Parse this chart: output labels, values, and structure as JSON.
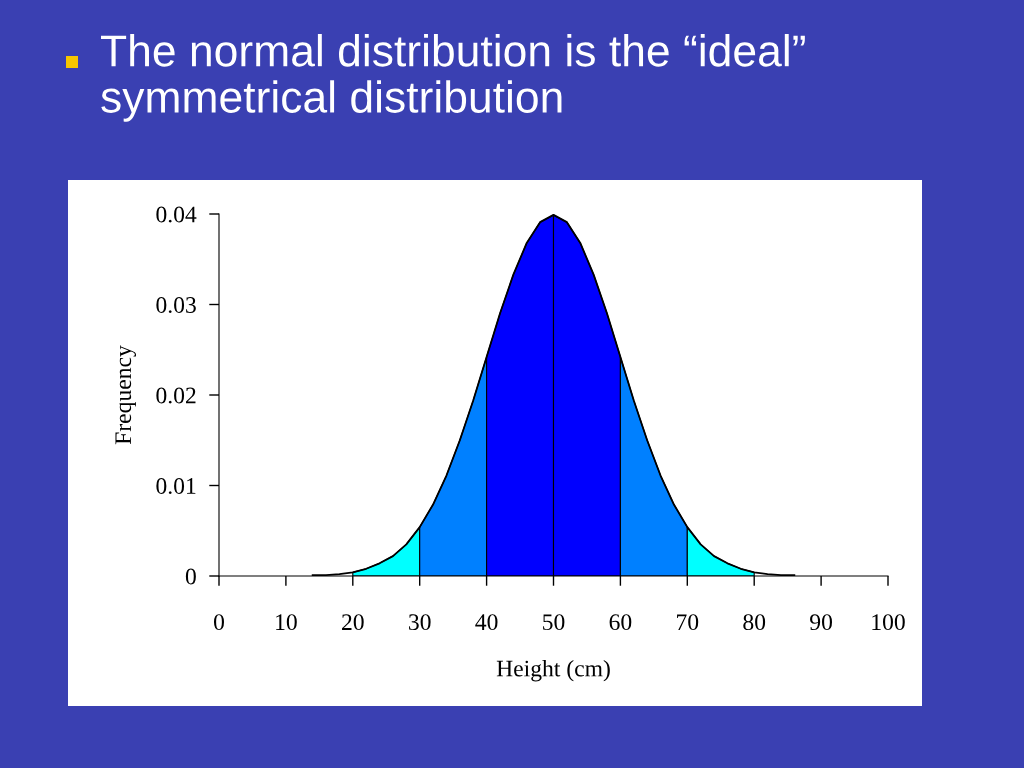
{
  "chart_data": {
    "type": "area",
    "title": "The normal distribution is the “ideal” symmetrical distribution",
    "xlabel": "Height (cm)",
    "ylabel": "Frequency",
    "xlim": [
      0,
      100
    ],
    "ylim": [
      0,
      0.04
    ],
    "xticks": [
      0,
      10,
      20,
      30,
      40,
      50,
      60,
      70,
      80,
      90,
      100
    ],
    "yticks": [
      0,
      0.01,
      0.02,
      0.03,
      0.04
    ],
    "series": [
      {
        "color": "#00ffff",
        "x": [
          20,
          22,
          24,
          26,
          28,
          30
        ],
        "values": [
          0.0004,
          0.0008,
          0.0014,
          0.0022,
          0.0035,
          0.0054
        ]
      },
      {
        "color": "#0080ff",
        "x": [
          30,
          32,
          34,
          36,
          38,
          40
        ],
        "values": [
          0.0054,
          0.0079,
          0.0111,
          0.015,
          0.0194,
          0.0242
        ]
      },
      {
        "color": "#0000ff",
        "x": [
          40,
          42,
          44,
          46,
          48,
          50
        ],
        "values": [
          0.0242,
          0.029,
          0.0333,
          0.0368,
          0.0391,
          0.0399
        ]
      },
      {
        "color": "#0000ff",
        "x": [
          50,
          52,
          54,
          56,
          58,
          60
        ],
        "values": [
          0.0399,
          0.0391,
          0.0368,
          0.0333,
          0.029,
          0.0242
        ]
      },
      {
        "color": "#0080ff",
        "x": [
          60,
          62,
          64,
          66,
          68,
          70
        ],
        "values": [
          0.0242,
          0.0194,
          0.015,
          0.0111,
          0.0079,
          0.0054
        ]
      },
      {
        "color": "#00ffff",
        "x": [
          70,
          72,
          74,
          76,
          78,
          80
        ],
        "values": [
          0.0054,
          0.0035,
          0.0022,
          0.0014,
          0.0008,
          0.0004
        ]
      },
      {
        "type": "line",
        "color": "#000000",
        "x": [
          14,
          16,
          18,
          20,
          22,
          24,
          26,
          28,
          30,
          32,
          34,
          36,
          38,
          40,
          42,
          44,
          46,
          48,
          50,
          52,
          54,
          56,
          58,
          60,
          62,
          64,
          66,
          68,
          70,
          72,
          74,
          76,
          78,
          80,
          82,
          84,
          86
        ],
        "values": [
          0.0001,
          0.0001,
          0.0002,
          0.0004,
          0.0008,
          0.0014,
          0.0022,
          0.0035,
          0.0054,
          0.0079,
          0.0111,
          0.015,
          0.0194,
          0.0242,
          0.029,
          0.0333,
          0.0368,
          0.0391,
          0.0399,
          0.0391,
          0.0368,
          0.0333,
          0.029,
          0.0242,
          0.0194,
          0.015,
          0.0111,
          0.0079,
          0.0054,
          0.0035,
          0.0022,
          0.0014,
          0.0008,
          0.0004,
          0.0002,
          0.0001,
          0.0001
        ]
      }
    ]
  }
}
